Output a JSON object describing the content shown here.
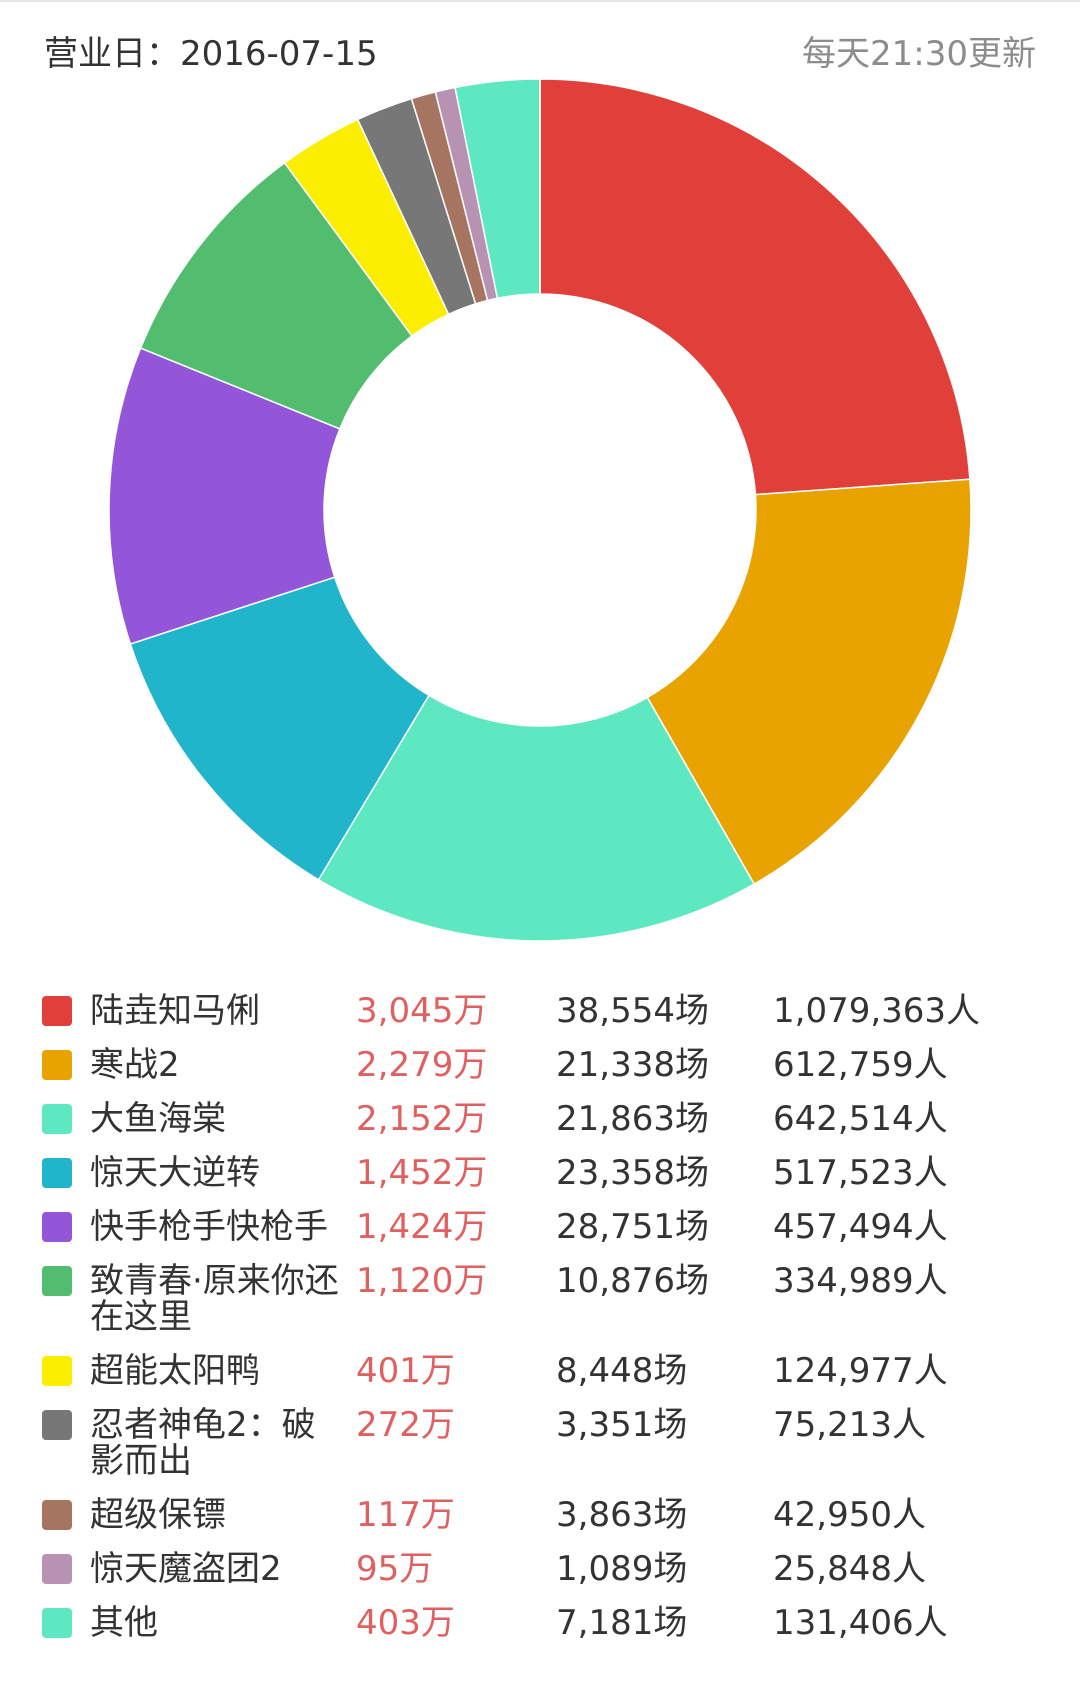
{
  "header": {
    "business_date": "营业日：2016-07-15",
    "update_note": "每天21:30更新"
  },
  "chart_data": {
    "type": "pie",
    "style": "donut",
    "start_angle_deg": 0,
    "direction": "clockwise",
    "series": [
      {
        "label": "陆垚知马俐",
        "box_office": "3,045万",
        "value": 3045,
        "screenings": "38,554场",
        "admissions": "1,079,363人",
        "color": "#E1403A"
      },
      {
        "label": "寒战2",
        "box_office": "2,279万",
        "value": 2279,
        "screenings": "21,338场",
        "admissions": "612,759人",
        "color": "#E8A300"
      },
      {
        "label": "大鱼海棠",
        "box_office": "2,152万",
        "value": 2152,
        "screenings": "21,863场",
        "admissions": "642,514人",
        "color": "#5EE8C2"
      },
      {
        "label": "惊天大逆转",
        "box_office": "1,452万",
        "value": 1452,
        "screenings": "23,358场",
        "admissions": "517,523人",
        "color": "#21B5CC"
      },
      {
        "label": "快手枪手快枪手",
        "box_office": "1,424万",
        "value": 1424,
        "screenings": "28,751场",
        "admissions": "457,494人",
        "color": "#9456D8"
      },
      {
        "label": "致青春·原来你还在这里",
        "box_office": "1,120万",
        "value": 1120,
        "screenings": "10,876场",
        "admissions": "334,989人",
        "color": "#52BD6E"
      },
      {
        "label": "超能太阳鸭",
        "box_office": "401万",
        "value": 401,
        "screenings": "8,448场",
        "admissions": "124,977人",
        "color": "#FCEE00"
      },
      {
        "label": "忍者神龟2：破影而出",
        "box_office": "272万",
        "value": 272,
        "screenings": "3,351场",
        "admissions": "75,213人",
        "color": "#777777"
      },
      {
        "label": "超级保镖",
        "box_office": "117万",
        "value": 117,
        "screenings": "3,863场",
        "admissions": "42,950人",
        "color": "#A67561"
      },
      {
        "label": "惊天魔盗团2",
        "box_office": "95万",
        "value": 95,
        "screenings": "1,089场",
        "admissions": "25,848人",
        "color": "#B792B2"
      },
      {
        "label": "其他",
        "box_office": "403万",
        "value": 403,
        "screenings": "7,181场",
        "admissions": "131,406人",
        "color": "#5EE8C2"
      }
    ]
  }
}
